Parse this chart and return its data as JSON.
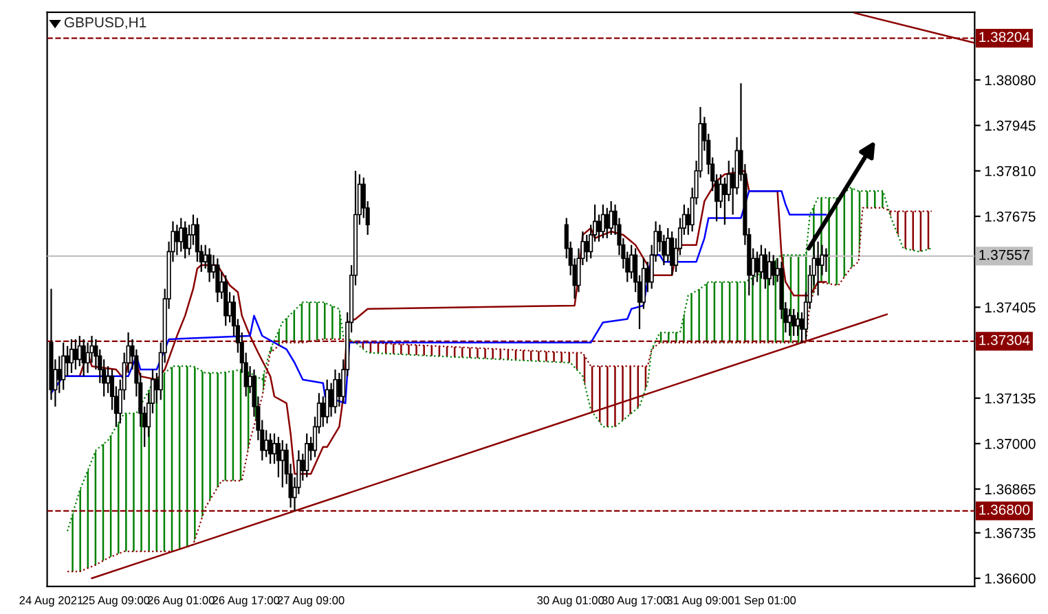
{
  "chart_data": {
    "type": "candlestick",
    "title": "GBPUSD,H1",
    "x": [
      "2021-08-24T17:00",
      "2021-08-24T18:00",
      "2021-08-24T19:00",
      "2021-08-24T20:00",
      "2021-08-24T21:00",
      "2021-08-24T22:00",
      "2021-08-24T23:00",
      "2021-08-25T00:00",
      "2021-08-25T01:00",
      "2021-08-25T02:00",
      "2021-08-25T03:00",
      "2021-08-25T04:00",
      "2021-08-25T05:00",
      "2021-08-25T06:00",
      "2021-08-25T07:00",
      "2021-08-25T08:00",
      "2021-08-25T09:00",
      "2021-08-25T10:00",
      "2021-08-25T11:00",
      "2021-08-25T12:00",
      "2021-08-25T13:00",
      "2021-08-25T14:00",
      "2021-08-25T15:00",
      "2021-08-25T16:00",
      "2021-08-25T17:00",
      "2021-08-25T18:00",
      "2021-08-25T19:00",
      "2021-08-25T20:00",
      "2021-08-25T21:00",
      "2021-08-25T22:00",
      "2021-08-25T23:00",
      "2021-08-26T00:00",
      "2021-08-26T01:00",
      "2021-08-26T02:00",
      "2021-08-26T03:00",
      "2021-08-26T04:00",
      "2021-08-26T05:00",
      "2021-08-26T06:00",
      "2021-08-26T07:00",
      "2021-08-26T08:00",
      "2021-08-26T09:00",
      "2021-08-26T10:00",
      "2021-08-26T11:00",
      "2021-08-26T12:00",
      "2021-08-26T13:00",
      "2021-08-26T14:00",
      "2021-08-26T15:00",
      "2021-08-26T16:00",
      "2021-08-26T17:00",
      "2021-08-26T18:00",
      "2021-08-26T19:00",
      "2021-08-26T20:00",
      "2021-08-26T21:00",
      "2021-08-26T22:00",
      "2021-08-26T23:00",
      "2021-08-27T00:00",
      "2021-08-27T01:00",
      "2021-08-27T02:00",
      "2021-08-27T03:00",
      "2021-08-27T04:00",
      "2021-08-27T05:00",
      "2021-08-27T06:00",
      "2021-08-27T07:00",
      "2021-08-27T08:00",
      "2021-08-27T09:00",
      "2021-08-27T10:00",
      "2021-08-27T11:00",
      "2021-08-27T12:00",
      "2021-08-27T13:00",
      "2021-08-27T14:00",
      "2021-08-27T15:00",
      "2021-08-27T16:00",
      "2021-08-27T17:00",
      "2021-08-27T18:00",
      "2021-08-27T19:00",
      "2021-08-27T20:00",
      "2021-08-27T21:00",
      "2021-08-27T22:00",
      "2021-08-27T23:00",
      "2021-08-30T00:00",
      "2021-08-30T01:00",
      "2021-08-30T02:00",
      "2021-08-30T03:00",
      "2021-08-30T04:00",
      "2021-08-30T05:00",
      "2021-08-30T06:00",
      "2021-08-30T07:00",
      "2021-08-30T08:00",
      "2021-08-30T09:00",
      "2021-08-30T10:00",
      "2021-08-30T11:00",
      "2021-08-30T12:00",
      "2021-08-30T13:00",
      "2021-08-30T14:00",
      "2021-08-30T15:00",
      "2021-08-30T16:00",
      "2021-08-30T17:00",
      "2021-08-30T18:00",
      "2021-08-30T19:00",
      "2021-08-30T20:00",
      "2021-08-30T21:00",
      "2021-08-30T22:00",
      "2021-08-30T23:00",
      "2021-08-31T00:00",
      "2021-08-31T01:00",
      "2021-08-31T02:00",
      "2021-08-31T03:00",
      "2021-08-31T04:00",
      "2021-08-31T05:00",
      "2021-08-31T06:00",
      "2021-08-31T07:00",
      "2021-08-31T08:00",
      "2021-08-31T09:00",
      "2021-08-31T10:00",
      "2021-08-31T11:00",
      "2021-08-31T12:00",
      "2021-08-31T13:00",
      "2021-08-31T14:00",
      "2021-08-31T15:00",
      "2021-08-31T16:00",
      "2021-08-31T17:00",
      "2021-08-31T18:00",
      "2021-08-31T19:00",
      "2021-08-31T20:00",
      "2021-08-31T21:00",
      "2021-08-31T22:00",
      "2021-08-31T23:00",
      "2021-09-01T00:00",
      "2021-09-01T01:00",
      "2021-09-01T02:00",
      "2021-09-01T03:00",
      "2021-09-01T04:00",
      "2021-09-01T05:00",
      "2021-09-01T06:00",
      "2021-09-01T07:00",
      "2021-09-01T08:00",
      "2021-09-01T09:00",
      "2021-09-01T10:00",
      "2021-09-01T11:00",
      "2021-09-01T12:00",
      "2021-09-01T13:00",
      "2021-09-01T14:00",
      "2021-09-01T15:00",
      "2021-09-01T16:00"
    ],
    "ohlc": [
      [
        1.373,
        1.3746,
        1.3713,
        1.3716
      ],
      [
        1.3716,
        1.3725,
        1.3711,
        1.3722
      ],
      [
        1.3722,
        1.3726,
        1.3715,
        1.3719
      ],
      [
        1.3719,
        1.373,
        1.3716,
        1.3726
      ],
      [
        1.3726,
        1.3729,
        1.372,
        1.3724
      ],
      [
        1.3724,
        1.3731,
        1.3721,
        1.3728
      ],
      [
        1.3728,
        1.3731,
        1.3722,
        1.3725
      ],
      [
        1.3725,
        1.3732,
        1.3723,
        1.3729
      ],
      [
        1.3729,
        1.3731,
        1.372,
        1.3724
      ],
      [
        1.3724,
        1.373,
        1.3721,
        1.3727
      ],
      [
        1.3727,
        1.3732,
        1.3724,
        1.3729
      ],
      [
        1.3729,
        1.3731,
        1.3722,
        1.3726
      ],
      [
        1.3726,
        1.3728,
        1.3718,
        1.3722
      ],
      [
        1.3722,
        1.3725,
        1.3714,
        1.3718
      ],
      [
        1.3718,
        1.3723,
        1.3715,
        1.372
      ],
      [
        1.372,
        1.3722,
        1.371,
        1.3714
      ],
      [
        1.3714,
        1.3717,
        1.3705,
        1.3709
      ],
      [
        1.3709,
        1.3719,
        1.3706,
        1.3716
      ],
      [
        1.3716,
        1.3727,
        1.3713,
        1.3724
      ],
      [
        1.3724,
        1.3733,
        1.3721,
        1.3729
      ],
      [
        1.3729,
        1.3731,
        1.3722,
        1.3726
      ],
      [
        1.3726,
        1.3728,
        1.3714,
        1.3718
      ],
      [
        1.3718,
        1.3721,
        1.3705,
        1.3709
      ],
      [
        1.3709,
        1.3711,
        1.3699,
        1.3705
      ],
      [
        1.3705,
        1.3715,
        1.3702,
        1.3712
      ],
      [
        1.3712,
        1.3722,
        1.3709,
        1.3719
      ],
      [
        1.3719,
        1.3721,
        1.3712,
        1.3716
      ],
      [
        1.3716,
        1.373,
        1.3713,
        1.3727
      ],
      [
        1.3727,
        1.3746,
        1.3724,
        1.3743
      ],
      [
        1.3743,
        1.376,
        1.374,
        1.3757
      ],
      [
        1.3757,
        1.3766,
        1.3754,
        1.3763
      ],
      [
        1.3763,
        1.3765,
        1.3756,
        1.376
      ],
      [
        1.376,
        1.3767,
        1.3757,
        1.3764
      ],
      [
        1.3764,
        1.3766,
        1.3755,
        1.3758
      ],
      [
        1.3758,
        1.3765,
        1.3756,
        1.3762
      ],
      [
        1.3762,
        1.3768,
        1.3759,
        1.3765
      ],
      [
        1.3765,
        1.3767,
        1.3754,
        1.3757
      ],
      [
        1.3757,
        1.3759,
        1.3751,
        1.3754
      ],
      [
        1.3754,
        1.3759,
        1.3752,
        1.3756
      ],
      [
        1.3756,
        1.3758,
        1.3748,
        1.3751
      ],
      [
        1.3751,
        1.3756,
        1.3749,
        1.3753
      ],
      [
        1.3753,
        1.3755,
        1.3742,
        1.3745
      ],
      [
        1.3745,
        1.3751,
        1.3743,
        1.3748
      ],
      [
        1.3748,
        1.375,
        1.3735,
        1.3738
      ],
      [
        1.3738,
        1.3745,
        1.3736,
        1.3742
      ],
      [
        1.3742,
        1.3744,
        1.3732,
        1.3735
      ],
      [
        1.3735,
        1.3737,
        1.3727,
        1.373
      ],
      [
        1.373,
        1.3733,
        1.3721,
        1.3724
      ],
      [
        1.3724,
        1.3727,
        1.3714,
        1.3717
      ],
      [
        1.3717,
        1.3723,
        1.3715,
        1.372
      ],
      [
        1.372,
        1.3722,
        1.3708,
        1.3711
      ],
      [
        1.3711,
        1.3714,
        1.3701,
        1.3704
      ],
      [
        1.3704,
        1.3707,
        1.3695,
        1.3698
      ],
      [
        1.3698,
        1.3704,
        1.3696,
        1.3701
      ],
      [
        1.3701,
        1.3703,
        1.3694,
        1.3697
      ],
      [
        1.3697,
        1.3703,
        1.3694,
        1.37
      ],
      [
        1.37,
        1.3702,
        1.369,
        1.3695
      ],
      [
        1.3695,
        1.3701,
        1.3687,
        1.3698
      ],
      [
        1.3698,
        1.37,
        1.3688,
        1.3691
      ],
      [
        1.3691,
        1.3694,
        1.3681,
        1.3684
      ],
      [
        1.3684,
        1.369,
        1.368,
        1.3687
      ],
      [
        1.3687,
        1.3698,
        1.3685,
        1.3695
      ],
      [
        1.3695,
        1.3697,
        1.3689,
        1.3692
      ],
      [
        1.3692,
        1.3703,
        1.369,
        1.37
      ],
      [
        1.37,
        1.3702,
        1.3695,
        1.3698
      ],
      [
        1.3698,
        1.3708,
        1.3696,
        1.3705
      ],
      [
        1.3705,
        1.3715,
        1.3703,
        1.3712
      ],
      [
        1.3712,
        1.3714,
        1.3705,
        1.3708
      ],
      [
        1.3708,
        1.3719,
        1.3706,
        1.3716
      ],
      [
        1.3716,
        1.3718,
        1.3708,
        1.3711
      ],
      [
        1.3711,
        1.3722,
        1.3709,
        1.3719
      ],
      [
        1.3719,
        1.3721,
        1.3711,
        1.3714
      ],
      [
        1.3714,
        1.3725,
        1.3712,
        1.3722
      ],
      [
        1.3722,
        1.3739,
        1.372,
        1.3736
      ],
      [
        1.3736,
        1.3753,
        1.3733,
        1.375
      ],
      [
        1.375,
        1.3781,
        1.3747,
        1.3768
      ],
      [
        1.3768,
        1.378,
        1.3765,
        1.3777
      ],
      [
        1.3777,
        1.3779,
        1.3767,
        1.377
      ],
      [
        1.377,
        1.3772,
        1.3762,
        1.3765
      ],
      [
        1.3765,
        1.3767,
        1.3755,
        1.3758
      ],
      [
        1.3758,
        1.376,
        1.375,
        1.3753
      ],
      [
        1.3753,
        1.3755,
        1.3743,
        1.3747
      ],
      [
        1.3747,
        1.3758,
        1.3745,
        1.3755
      ],
      [
        1.3755,
        1.3763,
        1.3753,
        1.376
      ],
      [
        1.376,
        1.3762,
        1.3754,
        1.3757
      ],
      [
        1.3757,
        1.3765,
        1.3755,
        1.3762
      ],
      [
        1.3762,
        1.3771,
        1.376,
        1.3766
      ],
      [
        1.3766,
        1.3768,
        1.376,
        1.3763
      ],
      [
        1.3763,
        1.3771,
        1.3761,
        1.3768
      ],
      [
        1.3768,
        1.377,
        1.3761,
        1.3764
      ],
      [
        1.3764,
        1.3772,
        1.3762,
        1.3769
      ],
      [
        1.3769,
        1.3771,
        1.3762,
        1.3765
      ],
      [
        1.3765,
        1.3767,
        1.3756,
        1.3759
      ],
      [
        1.3759,
        1.3761,
        1.3752,
        1.3755
      ],
      [
        1.3755,
        1.3757,
        1.3748,
        1.3751
      ],
      [
        1.3751,
        1.3759,
        1.3749,
        1.3756
      ],
      [
        1.3756,
        1.3758,
        1.3745,
        1.3748
      ],
      [
        1.3748,
        1.375,
        1.3734,
        1.3742
      ],
      [
        1.3742,
        1.3755,
        1.374,
        1.3752
      ],
      [
        1.3752,
        1.3754,
        1.3745,
        1.3748
      ],
      [
        1.3748,
        1.3759,
        1.3746,
        1.3756
      ],
      [
        1.3756,
        1.3766,
        1.3754,
        1.3763
      ],
      [
        1.3763,
        1.3765,
        1.3757,
        1.376
      ],
      [
        1.376,
        1.3762,
        1.3753,
        1.3756
      ],
      [
        1.3756,
        1.3764,
        1.3754,
        1.3761
      ],
      [
        1.3761,
        1.3763,
        1.375,
        1.3753
      ],
      [
        1.3753,
        1.3761,
        1.3751,
        1.3758
      ],
      [
        1.3758,
        1.3767,
        1.3756,
        1.3764
      ],
      [
        1.3764,
        1.3771,
        1.3762,
        1.3768
      ],
      [
        1.3768,
        1.377,
        1.3762,
        1.3765
      ],
      [
        1.3765,
        1.3776,
        1.3763,
        1.3773
      ],
      [
        1.3773,
        1.3784,
        1.3771,
        1.3781
      ],
      [
        1.3781,
        1.38,
        1.3779,
        1.3795
      ],
      [
        1.3795,
        1.3797,
        1.3787,
        1.379
      ],
      [
        1.379,
        1.3792,
        1.378,
        1.3783
      ],
      [
        1.3783,
        1.3785,
        1.3775,
        1.3778
      ],
      [
        1.3778,
        1.378,
        1.3766,
        1.3772
      ],
      [
        1.3772,
        1.378,
        1.377,
        1.3777
      ],
      [
        1.3777,
        1.3779,
        1.3765,
        1.3774
      ],
      [
        1.3774,
        1.3784,
        1.3772,
        1.378
      ],
      [
        1.378,
        1.3782,
        1.3768,
        1.3776
      ],
      [
        1.3776,
        1.3791,
        1.3774,
        1.3787
      ],
      [
        1.3787,
        1.3807,
        1.3778,
        1.378
      ],
      [
        1.378,
        1.3783,
        1.3759,
        1.3762
      ],
      [
        1.3762,
        1.3764,
        1.3744,
        1.375
      ],
      [
        1.375,
        1.3758,
        1.3747,
        1.3755
      ],
      [
        1.3755,
        1.3757,
        1.3748,
        1.3751
      ],
      [
        1.3751,
        1.3759,
        1.3749,
        1.3756
      ],
      [
        1.3756,
        1.3758,
        1.3746,
        1.3749
      ],
      [
        1.3749,
        1.3757,
        1.3747,
        1.3754
      ],
      [
        1.3754,
        1.3756,
        1.3747,
        1.375
      ],
      [
        1.375,
        1.3755,
        1.3748,
        1.3752
      ],
      [
        1.3752,
        1.3754,
        1.3737,
        1.374
      ],
      [
        1.374,
        1.3742,
        1.3733,
        1.3736
      ],
      [
        1.3736,
        1.374,
        1.3732,
        1.3738
      ],
      [
        1.3738,
        1.374,
        1.3732,
        1.3735
      ],
      [
        1.3735,
        1.3739,
        1.3732,
        1.3737
      ],
      [
        1.3737,
        1.3739,
        1.373,
        1.3734
      ],
      [
        1.3734,
        1.3745,
        1.3731,
        1.3742
      ],
      [
        1.3742,
        1.3753,
        1.374,
        1.375
      ],
      [
        1.375,
        1.3762,
        1.3747,
        1.3755
      ],
      [
        1.3755,
        1.376,
        1.3744,
        1.3753
      ],
      [
        1.3753,
        1.3759,
        1.375,
        1.3756
      ],
      [
        1.3756,
        1.3758,
        1.3751,
        1.37557
      ]
    ],
    "series": [
      {
        "type": "line",
        "color": "#8b0000",
        "line_style": "solid",
        "x": [
          "2021-08-24T17:30",
          "2021-08-25T00:00",
          "2021-08-25T02:00",
          "2021-08-25T03:00",
          "2021-08-25T09:00",
          "2021-08-25T11:00",
          "2021-08-25T12:00",
          "2021-08-25T14:00",
          "2021-08-25T15:00",
          "2021-08-25T19:00",
          "2021-08-25T21:00",
          "2021-08-26T00:00",
          "2021-08-26T02:00",
          "2021-08-26T04:00",
          "2021-08-26T05:00",
          "2021-08-26T06:00",
          "2021-08-26T10:00",
          "2021-08-26T13:00",
          "2021-08-26T15:00",
          "2021-08-26T16:00",
          "2021-08-26T18:00",
          "2021-08-26T20:00",
          "2021-08-26T23:00",
          "2021-08-27T00:00",
          "2021-08-27T03:00",
          "2021-08-27T04:00",
          "2021-08-27T05:00",
          "2021-08-27T06:00",
          "2021-08-27T09:00",
          "2021-08-27T12:00",
          "2021-08-27T13:00",
          "2021-08-27T16:00",
          "2021-08-27T17:00",
          "2021-08-27T18:00",
          "2021-08-27T20:00",
          "2021-08-27T23:00",
          "2021-08-30T02:00",
          "2021-08-30T03:00",
          "2021-08-30T04:00",
          "2021-08-30T06:00",
          "2021-08-30T07:00",
          "2021-08-30T09:00",
          "2021-08-30T11:00",
          "2021-08-30T14:00",
          "2021-08-30T16:00",
          "2021-08-30T17:00",
          "2021-08-30T20:00",
          "2021-08-30T21:00",
          "2021-08-31T02:00",
          "2021-08-31T03:00",
          "2021-08-31T04:00",
          "2021-08-31T08:00",
          "2021-08-31T10:00",
          "2021-08-31T13:00",
          "2021-08-31T15:00",
          "2021-08-31T20:00",
          "2021-08-31T21:00",
          "2021-09-01T04:00",
          "2021-09-01T05:00",
          "2021-09-01T06:00",
          "2021-09-01T08:00",
          "2021-09-01T12:00",
          "2021-09-01T14:00",
          "2021-09-01T16:00"
        ],
        "values": [
          1.372,
          1.372,
          1.3727,
          1.3723,
          1.3722,
          1.3719,
          1.3724,
          1.3724,
          1.372,
          1.3719,
          1.3722,
          1.3732,
          1.3738,
          1.3746,
          1.3752,
          1.3753,
          1.3753,
          1.3747,
          1.3745,
          1.3738,
          1.3732,
          1.3727,
          1.372,
          1.3714,
          1.3712,
          1.3703,
          1.3691,
          1.3691,
          1.3691,
          1.3699,
          1.3699,
          1.3705,
          1.3714,
          1.3736,
          1.3737,
          1.374,
          1.3741,
          1.375,
          1.3762,
          1.3764,
          1.3761,
          1.3762,
          1.3763,
          1.3762,
          1.376,
          1.3759,
          1.3753,
          1.375,
          1.375,
          1.3756,
          1.3759,
          1.3759,
          1.3772,
          1.3778,
          1.378,
          1.3781,
          1.3775,
          1.3775,
          1.3756,
          1.3748,
          1.3744,
          1.3744,
          1.3748,
          1.3748
        ]
      },
      {
        "type": "line",
        "color": "#0000ff",
        "line_style": "solid",
        "x": [
          "2021-08-24T17:00",
          "2021-08-24T20:00",
          "2021-08-25T12:00",
          "2021-08-25T14:00",
          "2021-08-25T15:00",
          "2021-08-25T19:00",
          "2021-08-25T22:00",
          "2021-08-26T18:00",
          "2021-08-26T19:00",
          "2021-08-26T21:00",
          "2021-08-27T00:00",
          "2021-08-27T03:00",
          "2021-08-27T05:00",
          "2021-08-27T07:00",
          "2021-08-27T12:00",
          "2021-08-27T12:30",
          "2021-08-27T17:30",
          "2021-08-27T18:30",
          "2021-08-30T06:00",
          "2021-08-30T08:00",
          "2021-08-30T09:00",
          "2021-08-30T15:00",
          "2021-08-30T16:00",
          "2021-08-30T19:00",
          "2021-08-30T21:00",
          "2021-08-30T23:00",
          "2021-08-31T00:00",
          "2021-08-31T08:00",
          "2021-08-31T10:00",
          "2021-08-31T11:00",
          "2021-08-31T19:00",
          "2021-08-31T21:00",
          "2021-09-01T05:00",
          "2021-09-01T06:00",
          "2021-09-01T07:00",
          "2021-09-01T16:00"
        ],
        "values": [
          1.3715,
          1.372,
          1.372,
          1.3726,
          1.3722,
          1.3722,
          1.3731,
          1.3732,
          1.3738,
          1.3732,
          1.373,
          1.3728,
          1.3724,
          1.3719,
          1.3718,
          1.3714,
          1.3712,
          1.373,
          1.373,
          1.3734,
          1.3736,
          1.3737,
          1.374,
          1.3741,
          1.3756,
          1.3756,
          1.3754,
          1.3754,
          1.3761,
          1.3767,
          1.3767,
          1.3775,
          1.3775,
          1.3771,
          1.3768,
          1.3768
        ]
      },
      {
        "type": "line",
        "color": "#008000",
        "line_style": "dotted",
        "x": [
          "2021-08-24T21:00",
          "2021-08-25T00:00",
          "2021-08-25T04:00",
          "2021-08-25T07:00",
          "2021-08-25T11:00",
          "2021-08-25T14:00",
          "2021-08-25T18:00",
          "2021-08-25T23:00",
          "2021-08-26T04:00",
          "2021-08-26T07:00",
          "2021-08-26T11:00",
          "2021-08-26T16:00",
          "2021-08-26T18:00",
          "2021-08-26T21:00",
          "2021-08-26T23:00",
          "2021-08-27T02:00",
          "2021-08-27T07:00",
          "2021-08-27T12:00",
          "2021-08-27T16:00",
          "2021-08-27T17:00",
          "2021-08-27T20:00",
          "2021-08-27T23:00",
          "2021-08-30T01:00",
          "2021-08-30T04:00",
          "2021-08-30T06:00",
          "2021-08-30T09:00",
          "2021-08-30T12:00",
          "2021-08-30T15:00",
          "2021-08-30T18:00",
          "2021-08-30T20:00",
          "2021-08-30T21:00",
          "2021-08-30T23:00",
          "2021-08-31T04:00",
          "2021-08-31T06:00",
          "2021-08-31T09:00",
          "2021-08-31T11:00",
          "2021-08-31T20:00",
          "2021-08-31T23:00",
          "2021-09-01T05:00",
          "2021-09-01T11:00",
          "2021-09-01T12:00",
          "2021-09-01T14:00",
          "2021-09-01T19:00",
          "2021-09-01T22:00",
          "2021-09-02T00:00",
          "2021-09-02T01:00",
          "2021-09-02T06:00",
          "2021-09-02T08:00",
          "2021-09-02T11:00",
          "2021-09-02T15:00",
          "2021-09-02T18:00"
        ],
        "values": [
          1.3674,
          1.3686,
          1.3698,
          1.3701,
          1.3709,
          1.3709,
          1.3718,
          1.3723,
          1.3723,
          1.3721,
          1.3721,
          1.3722,
          1.3721,
          1.3719,
          1.3728,
          1.3736,
          1.3742,
          1.3742,
          1.374,
          1.3732,
          1.373,
          1.3727,
          1.3724,
          1.372,
          1.371,
          1.3705,
          1.3705,
          1.3708,
          1.3711,
          1.3718,
          1.3728,
          1.3733,
          1.3733,
          1.3744,
          1.3746,
          1.3748,
          1.3748,
          1.375,
          1.3756,
          1.3756,
          1.3768,
          1.3773,
          1.3773,
          1.3776,
          1.3775,
          1.3775,
          1.3775,
          1.3767,
          1.3758,
          1.3757,
          1.3758
        ]
      },
      {
        "type": "line",
        "color": "#8b0000",
        "line_style": "dotted",
        "x": [
          "2021-08-24T21:00",
          "2021-08-25T00:00",
          "2021-08-25T04:00",
          "2021-08-25T07:00",
          "2021-08-25T11:00",
          "2021-08-25T14:00",
          "2021-08-25T18:00",
          "2021-08-25T23:00",
          "2021-08-26T04:00",
          "2021-08-26T07:00",
          "2021-08-26T11:00",
          "2021-08-26T16:00",
          "2021-08-26T18:00",
          "2021-08-26T21:00",
          "2021-08-26T23:00",
          "2021-08-27T02:00",
          "2021-08-27T07:00",
          "2021-08-27T12:00",
          "2021-08-27T16:00",
          "2021-08-27T17:00",
          "2021-08-27T20:00",
          "2021-08-27T23:00",
          "2021-08-30T01:00",
          "2021-08-30T04:00",
          "2021-08-30T06:00",
          "2021-08-30T09:00",
          "2021-08-30T12:00",
          "2021-08-30T15:00",
          "2021-08-30T18:00",
          "2021-08-30T20:00",
          "2021-08-30T21:00",
          "2021-08-30T23:00",
          "2021-08-31T04:00",
          "2021-08-31T06:00",
          "2021-08-31T09:00",
          "2021-08-31T11:00",
          "2021-08-31T20:00",
          "2021-08-31T23:00",
          "2021-09-01T05:00",
          "2021-09-01T11:00",
          "2021-09-01T12:00",
          "2021-09-01T14:00",
          "2021-09-01T19:00",
          "2021-09-01T22:00",
          "2021-09-02T00:00",
          "2021-09-02T01:00",
          "2021-09-02T06:00",
          "2021-09-02T08:00",
          "2021-09-02T11:00",
          "2021-09-02T15:00",
          "2021-09-02T18:00"
        ],
        "values": [
          1.3662,
          1.3662,
          1.3664,
          1.3666,
          1.3668,
          1.3668,
          1.3668,
          1.3668,
          1.367,
          1.3681,
          1.3689,
          1.3689,
          1.3701,
          1.3714,
          1.3727,
          1.373,
          1.373,
          1.3731,
          1.3731,
          1.3731,
          1.373,
          1.373,
          1.3727,
          1.3727,
          1.3723,
          1.3723,
          1.3723,
          1.3723,
          1.3723,
          1.3723,
          1.3728,
          1.373,
          1.373,
          1.373,
          1.373,
          1.373,
          1.373,
          1.373,
          1.373,
          1.373,
          1.3742,
          1.3748,
          1.3747,
          1.3752,
          1.3754,
          1.377,
          1.377,
          1.3769,
          1.3769,
          1.3769,
          1.3769
        ]
      },
      {
        "type": "line",
        "color": "#8b0000",
        "line_style": "solid",
        "x": [
          "2021-08-25T03:00",
          "2021-09-02T07:00"
        ],
        "values": [
          1.366,
          1.37384
        ]
      },
      {
        "type": "line",
        "color": "#8b0000",
        "line_style": "solid",
        "x": [
          "2021-09-01T23:00",
          "2021-09-03T04:36"
        ],
        "values": [
          1.38279,
          1.3819
        ]
      }
    ],
    "ref_lines": [
      {
        "axis": "y",
        "value": 1.38204,
        "label": "1.38204",
        "color": "#8b0000",
        "line_style": "dashed"
      },
      {
        "axis": "y",
        "value": 1.37304,
        "label": "1.37304",
        "color": "#8b0000",
        "line_style": "dashed"
      },
      {
        "axis": "y",
        "value": 1.368,
        "label": "1.36800",
        "color": "#8b0000",
        "line_style": "dashed"
      },
      {
        "axis": "y",
        "value": 1.37557,
        "label": "1.37557",
        "color": "#c0c0c0",
        "line_style": "solid"
      }
    ],
    "xlim": [
      "2021-08-24T16:00",
      "2021-09-03T04:36"
    ],
    "xticks": [
      {
        "value": "2021-08-24T17:00",
        "label": "24 Aug 2021"
      },
      {
        "value": "2021-08-25T09:00",
        "label": "25 Aug 09:00"
      },
      {
        "value": "2021-08-26T01:00",
        "label": "26 Aug 01:00"
      },
      {
        "value": "2021-08-26T17:00",
        "label": "26 Aug 17:00"
      },
      {
        "value": "2021-08-27T09:00",
        "label": "27 Aug 09:00"
      },
      {
        "value": "2021-08-30T01:00",
        "label": "30 Aug 01:00"
      },
      {
        "value": "2021-08-30T17:00",
        "label": "30 Aug 17:00"
      },
      {
        "value": "2021-08-31T09:00",
        "label": "31 Aug 09:00"
      },
      {
        "value": "2021-09-01T01:00",
        "label": "1 Sep 01:00"
      }
    ],
    "ylim": [
      1.36576,
      1.38281
    ],
    "yticks": [
      {
        "value": 1.366,
        "label": "1.36600"
      },
      {
        "value": 1.36735,
        "label": "1.36735"
      },
      {
        "value": 1.36865,
        "label": "1.36865"
      },
      {
        "value": 1.37,
        "label": "1.37000"
      },
      {
        "value": 1.37135,
        "label": "1.37135"
      },
      {
        "value": 1.37405,
        "label": "1.37405"
      },
      {
        "value": 1.37675,
        "label": "1.37675"
      },
      {
        "value": 1.3781,
        "label": "1.37810"
      },
      {
        "value": 1.37945,
        "label": "1.37945"
      },
      {
        "value": 1.3808,
        "label": "1.38080"
      }
    ]
  }
}
